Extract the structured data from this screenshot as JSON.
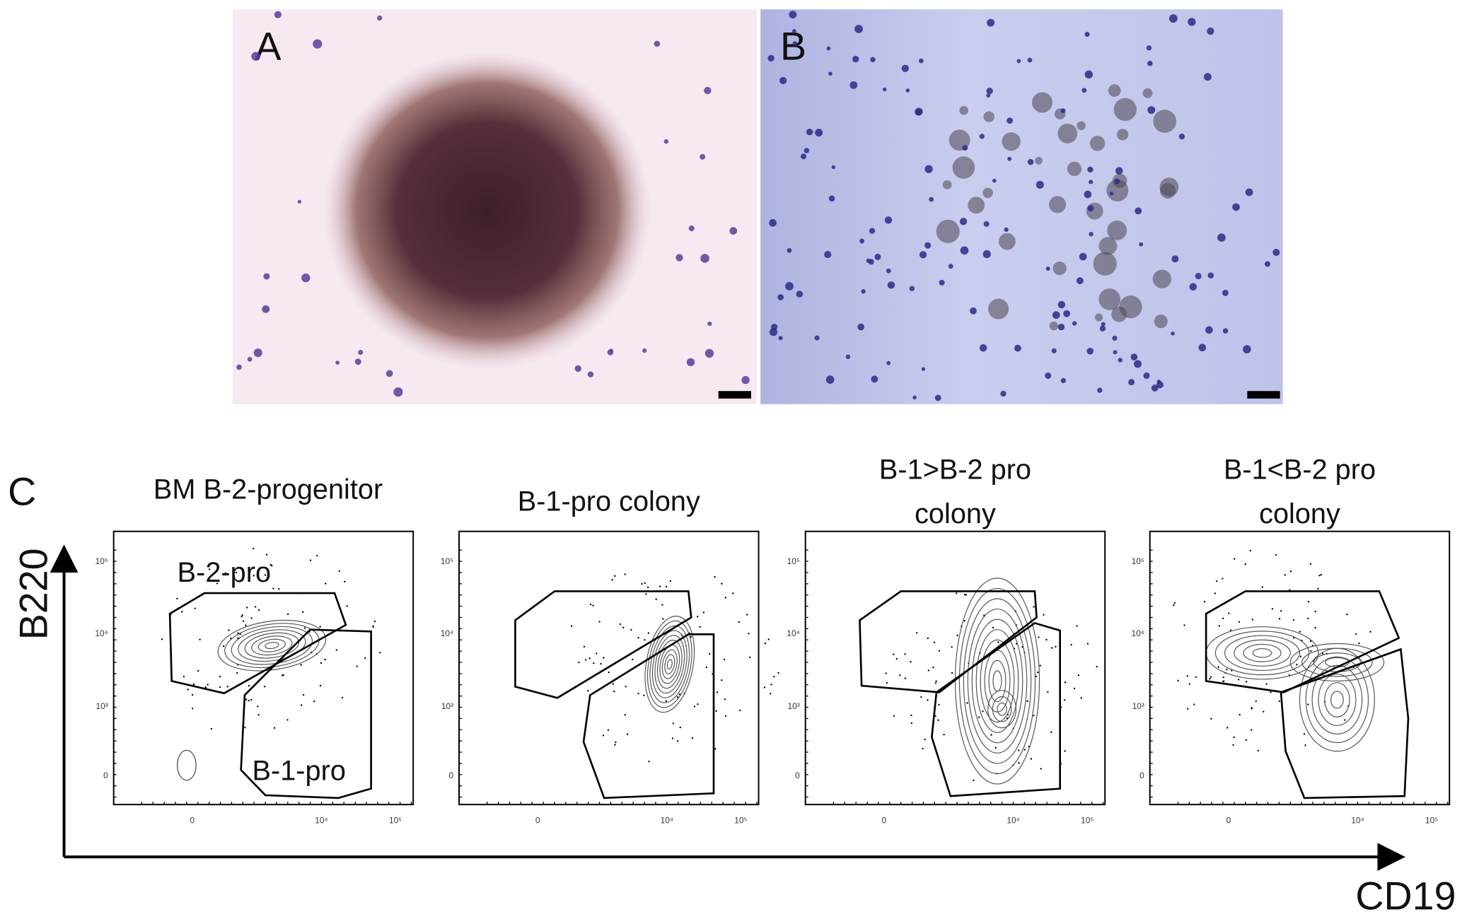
{
  "panels": [
    {
      "label": "A"
    },
    {
      "label": "B"
    }
  ],
  "panel_c": {
    "label": "C",
    "y_axis_label": "B220",
    "x_axis_label": "CD19",
    "y_tick_labels": [
      "10⁵",
      "10⁴",
      "10³",
      "0"
    ],
    "x_tick_labels": [
      "0",
      "10⁴",
      "10⁵"
    ],
    "plots": [
      {
        "title_lines": [
          "BM B-2-progenitor"
        ],
        "gate_labels": [
          "B-2-pro",
          "B-1-pro"
        ]
      },
      {
        "title_lines": [
          "B-1-pro colony"
        ]
      },
      {
        "title_lines": [
          "B-1>B-2 pro",
          "colony"
        ]
      },
      {
        "title_lines": [
          "B-1<B-2 pro",
          "colony"
        ]
      }
    ]
  }
}
